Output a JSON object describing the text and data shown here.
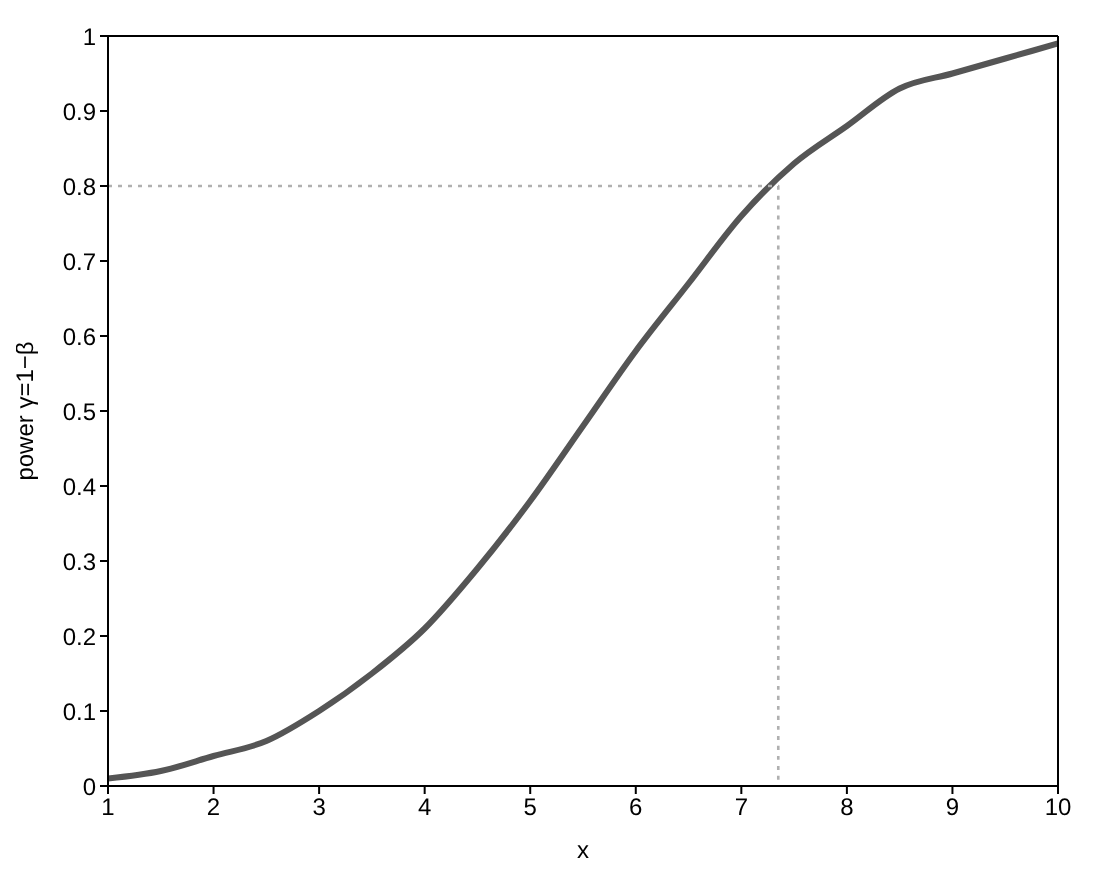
{
  "chart_data": {
    "type": "line",
    "xlabel": "x",
    "ylabel": "power γ=1−β",
    "xlim": [
      1,
      10
    ],
    "xticks": [
      1,
      2,
      3,
      4,
      5,
      6,
      7,
      8,
      9,
      10
    ],
    "ylim": [
      0,
      1
    ],
    "yticks": [
      0,
      0.1,
      0.2,
      0.3,
      0.4,
      0.5,
      0.6,
      0.7,
      0.8,
      0.9,
      1
    ],
    "marker": "none",
    "series": [
      {
        "color": "#555555",
        "line_style": "solid",
        "x": [
          1,
          1.5,
          2,
          2.5,
          3,
          3.5,
          4,
          4.5,
          5,
          5.5,
          6,
          6.5,
          7,
          7.5,
          8,
          8.5,
          9,
          9.5,
          10
        ],
        "values": [
          0.01,
          0.02,
          0.04,
          0.06,
          0.1,
          0.15,
          0.21,
          0.29,
          0.38,
          0.48,
          0.58,
          0.67,
          0.76,
          0.83,
          0.88,
          0.93,
          0.95,
          0.97,
          0.99
        ]
      },
      {
        "color": "#b0b0b0",
        "line_style": "dotted",
        "x": [
          1,
          7.35,
          7.35
        ],
        "values": [
          0.8,
          0.8,
          0
        ]
      }
    ]
  }
}
